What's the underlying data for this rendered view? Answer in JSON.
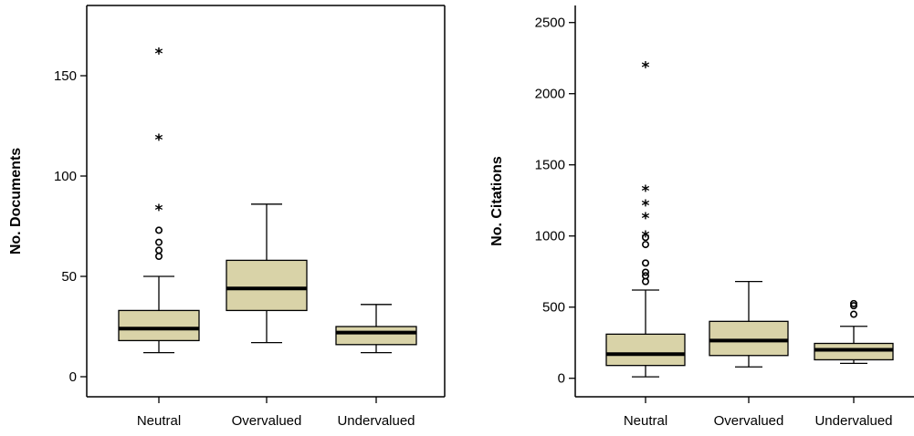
{
  "chart_data": [
    {
      "type": "box",
      "title": "",
      "xlabel": "",
      "ylabel": "No. Documents",
      "ylim": [
        -10,
        185
      ],
      "yticks": [
        0,
        50,
        100,
        150
      ],
      "categories": [
        "Neutral",
        "Overvalued",
        "Undervalued"
      ],
      "boxes": [
        {
          "category": "Neutral",
          "min": 12,
          "q1": 18,
          "median": 24,
          "q3": 33,
          "max": 50,
          "outliers": [
            60,
            63,
            67,
            73
          ],
          "extremes": [
            84,
            119,
            162
          ]
        },
        {
          "category": "Overvalued",
          "min": 17,
          "q1": 33,
          "median": 44,
          "q3": 58,
          "max": 86,
          "outliers": [],
          "extremes": []
        },
        {
          "category": "Undervalued",
          "min": 12,
          "q1": 16,
          "median": 22,
          "q3": 25,
          "max": 36,
          "outliers": [],
          "extremes": []
        }
      ]
    },
    {
      "type": "box",
      "title": "",
      "xlabel": "",
      "ylabel": "No. Citations",
      "ylim": [
        -130,
        2620
      ],
      "yticks": [
        0,
        500,
        1000,
        1500,
        2000,
        2500
      ],
      "categories": [
        "Neutral",
        "Overvalued",
        "Undervalued"
      ],
      "boxes": [
        {
          "category": "Neutral",
          "min": 10,
          "q1": 90,
          "median": 170,
          "q3": 310,
          "max": 620,
          "outliers": [
            680,
            720,
            745,
            810,
            940,
            990
          ],
          "extremes": [
            1010,
            1140,
            1230,
            1330,
            2200
          ]
        },
        {
          "category": "Overvalued",
          "min": 80,
          "q1": 160,
          "median": 265,
          "q3": 400,
          "max": 680,
          "outliers": [],
          "extremes": []
        },
        {
          "category": "Undervalued",
          "min": 105,
          "q1": 130,
          "median": 200,
          "q3": 245,
          "max": 365,
          "outliers": [
            450,
            510,
            525
          ],
          "extremes": []
        }
      ]
    }
  ],
  "colors": {
    "box_fill": "#d9d3a8",
    "line": "#000000",
    "background": "#ffffff"
  }
}
